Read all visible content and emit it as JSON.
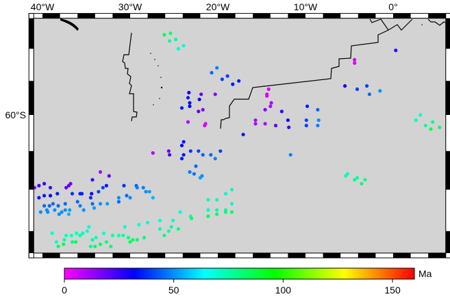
{
  "map": {
    "projection": "mercator",
    "region": {
      "west": -41,
      "east": 6,
      "south": -67,
      "north": -54
    },
    "land_color": "#d3d3d3",
    "lon_labels": [
      {
        "lon": -40,
        "text": "40°W"
      },
      {
        "lon": -30,
        "text": "30°W"
      },
      {
        "lon": -20,
        "text": "20°W"
      },
      {
        "lon": -10,
        "text": "10°W"
      },
      {
        "lon": 0,
        "text": "0°"
      }
    ],
    "lat_labels": [
      {
        "lat": -60,
        "text": "60°S"
      }
    ],
    "frame_lon_interval": 2,
    "frame_lat_interval": 2
  },
  "points_fields": [
    "lon",
    "lat",
    "age_ma"
  ],
  "points": [
    [
      -26.1,
      -55.1,
      85
    ],
    [
      -25.4,
      -55.0,
      82
    ],
    [
      -25.5,
      -55.5,
      75
    ],
    [
      -24.8,
      -55.4,
      78
    ],
    [
      -24.5,
      -56.0,
      72
    ],
    [
      -23.9,
      -55.8,
      70
    ],
    [
      -20.7,
      -57.5,
      45
    ],
    [
      -20.1,
      -57.2,
      48
    ],
    [
      -19.5,
      -57.9,
      40
    ],
    [
      -23.3,
      -58.7,
      30
    ],
    [
      -21.9,
      -58.8,
      20
    ],
    [
      -23.4,
      -59.0,
      35
    ],
    [
      -22.1,
      -59.1,
      30
    ],
    [
      -20.3,
      -58.8,
      15
    ],
    [
      -24.1,
      -59.6,
      35
    ],
    [
      -23.2,
      -59.5,
      32
    ],
    [
      -23.2,
      -59.3,
      33
    ],
    [
      -21.7,
      -59.7,
      15
    ],
    [
      -22.2,
      -59.8,
      20
    ],
    [
      -23.4,
      -60.4,
      10
    ],
    [
      -21.4,
      -60.5,
      5
    ],
    [
      -21.5,
      -60.6,
      5
    ],
    [
      -18.9,
      -57.7,
      40
    ],
    [
      -18.3,
      -58.2,
      35
    ],
    [
      -17.6,
      -58.0,
      35
    ],
    [
      -14.2,
      -58.5,
      5
    ],
    [
      -14.4,
      -58.8,
      5
    ],
    [
      -14.4,
      -58.9,
      5
    ],
    [
      -13.9,
      -59.3,
      10
    ],
    [
      -14.0,
      -59.5,
      10
    ],
    [
      -14.6,
      -59.7,
      15
    ],
    [
      -14.6,
      -60.5,
      10
    ],
    [
      -12.7,
      -59.8,
      25
    ],
    [
      -13.4,
      -60.6,
      20
    ],
    [
      -12.0,
      -60.3,
      30
    ],
    [
      -11.9,
      -60.7,
      25
    ],
    [
      -9.8,
      -59.5,
      35
    ],
    [
      -9.9,
      -60.3,
      40
    ],
    [
      -9.9,
      -60.6,
      40
    ],
    [
      -8.6,
      -59.7,
      45
    ],
    [
      -8.5,
      -60.3,
      50
    ],
    [
      -8.6,
      -60.6,
      48
    ],
    [
      -15.7,
      -60.3,
      10
    ],
    [
      -15.7,
      -60.5,
      10
    ],
    [
      -17.1,
      -61.1,
      35
    ],
    [
      -11.7,
      -62.2,
      48
    ],
    [
      -5.5,
      -58.3,
      30
    ],
    [
      -4.1,
      -58.5,
      40
    ],
    [
      -3.0,
      -58.3,
      40
    ],
    [
      -2.7,
      -58.8,
      45
    ],
    [
      -1.5,
      -58.6,
      50
    ],
    [
      -4.4,
      -56.7,
      5
    ],
    [
      -4.4,
      -56.9,
      5
    ],
    [
      0.3,
      -56.1,
      25
    ],
    [
      2.6,
      -60.3,
      72
    ],
    [
      3.1,
      -60.0,
      70
    ],
    [
      3.7,
      -60.6,
      75
    ],
    [
      4.5,
      -60.4,
      78
    ],
    [
      4.3,
      -60.8,
      85
    ],
    [
      5.3,
      -60.7,
      82
    ],
    [
      -27.4,
      -62.1,
      10
    ],
    [
      -25.6,
      -62.0,
      20
    ],
    [
      -25.5,
      -62.2,
      22
    ],
    [
      -24.1,
      -61.7,
      32
    ],
    [
      -23.9,
      -61.5,
      34
    ],
    [
      -24.1,
      -62.4,
      35
    ],
    [
      -23.9,
      -62.2,
      35
    ],
    [
      -23.1,
      -62.0,
      38
    ],
    [
      -22.2,
      -62.0,
      40
    ],
    [
      -21.7,
      -62.2,
      44
    ],
    [
      -22.5,
      -62.8,
      45
    ],
    [
      -23.2,
      -63.1,
      48
    ],
    [
      -22.7,
      -63.2,
      46
    ],
    [
      -21.8,
      -63.3,
      50
    ],
    [
      -22.0,
      -63.4,
      52
    ],
    [
      -19.7,
      -62.0,
      40
    ],
    [
      -20.8,
      -62.2,
      45
    ],
    [
      -20.3,
      -62.4,
      48
    ],
    [
      -5.4,
      -63.3,
      72
    ],
    [
      -5.2,
      -63.2,
      72
    ],
    [
      -4.4,
      -63.5,
      78
    ],
    [
      -4.1,
      -63.4,
      75
    ],
    [
      -3.6,
      -63.7,
      82
    ],
    [
      -3.2,
      -63.5,
      80
    ],
    [
      -40.9,
      -63.9,
      15
    ],
    [
      -40.4,
      -63.8,
      25
    ],
    [
      -39.8,
      -63.7,
      25
    ],
    [
      -39.1,
      -63.9,
      25
    ],
    [
      -40.4,
      -64.4,
      35
    ],
    [
      -39.8,
      -64.3,
      35
    ],
    [
      -39.1,
      -64.3,
      33
    ],
    [
      -38.3,
      -64.2,
      35
    ],
    [
      -37.3,
      -63.9,
      20
    ],
    [
      -37.0,
      -63.8,
      20
    ],
    [
      -36.8,
      -63.7,
      18
    ],
    [
      -34.3,
      -63.5,
      25
    ],
    [
      -33.4,
      -63.1,
      10
    ],
    [
      -32.4,
      -63.3,
      20
    ],
    [
      -34.4,
      -64.2,
      30
    ],
    [
      -36.6,
      -64.2,
      38
    ],
    [
      -35.7,
      -64.2,
      36
    ],
    [
      -35.5,
      -64.2,
      36
    ],
    [
      -34.5,
      -64.4,
      38
    ],
    [
      -33.6,
      -64.1,
      40
    ],
    [
      -33.1,
      -63.9,
      40
    ],
    [
      -32.7,
      -63.8,
      35
    ],
    [
      -30.7,
      -63.8,
      38
    ],
    [
      -31.3,
      -64.6,
      45
    ],
    [
      -30.4,
      -64.3,
      45
    ],
    [
      -30.0,
      -64.4,
      50
    ],
    [
      -29.3,
      -63.8,
      45
    ],
    [
      -28.5,
      -63.9,
      48
    ],
    [
      -28.2,
      -64.1,
      50
    ],
    [
      -27.8,
      -64.1,
      52
    ],
    [
      -27.4,
      -64.4,
      55
    ],
    [
      -40.2,
      -65.1,
      50
    ],
    [
      -39.8,
      -64.8,
      45
    ],
    [
      -39.5,
      -65.0,
      50
    ],
    [
      -39.4,
      -65.1,
      50
    ],
    [
      -39.2,
      -64.8,
      45
    ],
    [
      -38.8,
      -64.7,
      45
    ],
    [
      -38.6,
      -65.0,
      50
    ],
    [
      -38.2,
      -64.8,
      45
    ],
    [
      -38.1,
      -65.2,
      50
    ],
    [
      -37.8,
      -65.1,
      50
    ],
    [
      -37.4,
      -65.0,
      50
    ],
    [
      -37.4,
      -64.7,
      45
    ],
    [
      -37.0,
      -65.2,
      55
    ],
    [
      -36.9,
      -65.0,
      52
    ],
    [
      -36.0,
      -64.6,
      45
    ],
    [
      -35.7,
      -64.8,
      48
    ],
    [
      -35.3,
      -65.0,
      50
    ],
    [
      -34.3,
      -64.7,
      45
    ],
    [
      -34.1,
      -64.9,
      52
    ],
    [
      -33.4,
      -64.7,
      50
    ],
    [
      -32.6,
      -64.7,
      52
    ],
    [
      -31.3,
      -64.4,
      50
    ],
    [
      -29.2,
      -63.9,
      48
    ],
    [
      -38.9,
      -66.1,
      70
    ],
    [
      -38.4,
      -66.5,
      72
    ],
    [
      -38.2,
      -66.7,
      85
    ],
    [
      -37.6,
      -66.6,
      85
    ],
    [
      -37.3,
      -66.2,
      72
    ],
    [
      -37.5,
      -66.4,
      75
    ],
    [
      -36.7,
      -66.2,
      72
    ],
    [
      -36.6,
      -66.5,
      80
    ],
    [
      -36.2,
      -66.5,
      85
    ],
    [
      -36.1,
      -66.1,
      72
    ],
    [
      -35.7,
      -66.2,
      75
    ],
    [
      -35.4,
      -66.1,
      72
    ],
    [
      -34.9,
      -66.0,
      70
    ],
    [
      -34.7,
      -65.8,
      70
    ],
    [
      -34.5,
      -66.7,
      80
    ],
    [
      -34.3,
      -66.4,
      75
    ],
    [
      -34.0,
      -66.7,
      85
    ],
    [
      -33.9,
      -66.3,
      72
    ],
    [
      -33.4,
      -66.6,
      85
    ],
    [
      -33.0,
      -66.1,
      70
    ],
    [
      -32.7,
      -66.5,
      80
    ],
    [
      -32.2,
      -66.7,
      82
    ],
    [
      -32.0,
      -66.2,
      75
    ],
    [
      -31.3,
      -66.2,
      75
    ],
    [
      -30.8,
      -66.2,
      75
    ],
    [
      -30.6,
      -65.8,
      70
    ],
    [
      -30.2,
      -66.3,
      80
    ],
    [
      -30.0,
      -66.5,
      85
    ],
    [
      -29.7,
      -66.4,
      85
    ],
    [
      -29.2,
      -66.4,
      83
    ],
    [
      -29.0,
      -65.7,
      70
    ],
    [
      -28.4,
      -66.3,
      82
    ],
    [
      -28.0,
      -65.6,
      70
    ],
    [
      -26.6,
      -65.5,
      70
    ],
    [
      -26.6,
      -65.9,
      75
    ],
    [
      -26.1,
      -66.2,
      80
    ],
    [
      -25.6,
      -66.0,
      75
    ],
    [
      -25.3,
      -65.8,
      75
    ],
    [
      -25.1,
      -65.5,
      72
    ],
    [
      -24.5,
      -65.9,
      80
    ],
    [
      -24.3,
      -65.1,
      70
    ],
    [
      -23.1,
      -65.3,
      72
    ],
    [
      -23.0,
      -65.4,
      85
    ],
    [
      -21.1,
      -64.5,
      72
    ],
    [
      -21.1,
      -65.0,
      72
    ],
    [
      -21.1,
      -65.3,
      85
    ],
    [
      -20.1,
      -64.5,
      72
    ],
    [
      -20.1,
      -65.0,
      75
    ],
    [
      -20.1,
      -65.2,
      85
    ],
    [
      -19.1,
      -64.2,
      72
    ],
    [
      -19.1,
      -65.0,
      75
    ],
    [
      -19.1,
      -65.1,
      82
    ],
    [
      -18.4,
      -64.0,
      72
    ],
    [
      -18.4,
      -64.7,
      72
    ],
    [
      -18.4,
      -65.1,
      85
    ]
  ],
  "colorbar": {
    "palette": "rainbow",
    "min": 0,
    "max": 160,
    "ticks": [
      {
        "value": 0,
        "text": "0"
      },
      {
        "value": 50,
        "text": "50"
      },
      {
        "value": 100,
        "text": "100"
      },
      {
        "value": 150,
        "text": "150"
      }
    ],
    "unit": "Ma"
  }
}
